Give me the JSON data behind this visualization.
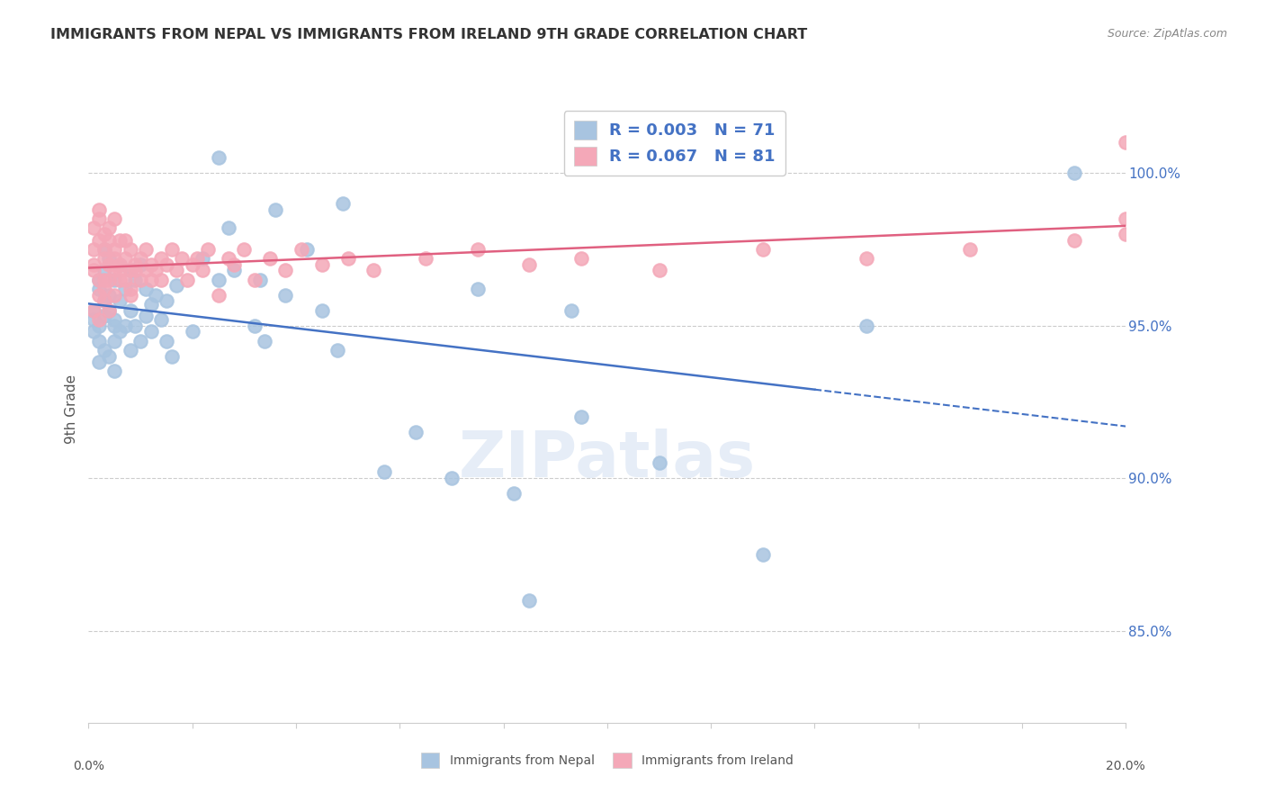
{
  "title": "IMMIGRANTS FROM NEPAL VS IMMIGRANTS FROM IRELAND 9TH GRADE CORRELATION CHART",
  "source": "Source: ZipAtlas.com",
  "ylabel": "9th Grade",
  "yticks": [
    85.0,
    90.0,
    95.0,
    100.0
  ],
  "ytick_labels": [
    "85.0%",
    "90.0%",
    "95.0%",
    "100.0%"
  ],
  "xlim": [
    0.0,
    0.2
  ],
  "ylim": [
    82.0,
    102.5
  ],
  "nepal_R": 0.003,
  "nepal_N": 71,
  "ireland_R": 0.067,
  "ireland_N": 81,
  "nepal_color": "#a8c4e0",
  "ireland_color": "#f4a8b8",
  "nepal_line_color": "#4472c4",
  "ireland_line_color": "#e06080",
  "legend_text_color": "#4472c4",
  "title_color": "#333333",
  "watermark": "ZIPatlas",
  "nepal_x": [
    0.001,
    0.001,
    0.001,
    0.002,
    0.002,
    0.002,
    0.002,
    0.002,
    0.003,
    0.003,
    0.003,
    0.003,
    0.003,
    0.004,
    0.004,
    0.004,
    0.004,
    0.005,
    0.005,
    0.005,
    0.005,
    0.005,
    0.006,
    0.006,
    0.006,
    0.007,
    0.007,
    0.008,
    0.008,
    0.008,
    0.009,
    0.009,
    0.01,
    0.01,
    0.011,
    0.011,
    0.012,
    0.012,
    0.013,
    0.014,
    0.015,
    0.015,
    0.016,
    0.017,
    0.02,
    0.022,
    0.025,
    0.025,
    0.027,
    0.028,
    0.032,
    0.033,
    0.034,
    0.036,
    0.038,
    0.042,
    0.045,
    0.048,
    0.049,
    0.057,
    0.063,
    0.07,
    0.075,
    0.082,
    0.085,
    0.093,
    0.095,
    0.11,
    0.13,
    0.15,
    0.19
  ],
  "nepal_y": [
    95.2,
    94.8,
    95.5,
    95.0,
    96.2,
    94.5,
    96.5,
    93.8,
    95.3,
    96.8,
    94.2,
    97.5,
    95.8,
    94.0,
    96.0,
    95.5,
    97.2,
    95.0,
    94.5,
    96.5,
    95.2,
    93.5,
    97.0,
    95.8,
    94.8,
    96.2,
    95.0,
    95.5,
    94.2,
    96.8,
    95.0,
    96.5,
    94.5,
    97.0,
    95.3,
    96.2,
    94.8,
    95.7,
    96.0,
    95.2,
    94.5,
    95.8,
    94.0,
    96.3,
    94.8,
    97.2,
    96.5,
    100.5,
    98.2,
    96.8,
    95.0,
    96.5,
    94.5,
    98.8,
    96.0,
    97.5,
    95.5,
    94.2,
    99.0,
    90.2,
    91.5,
    90.0,
    96.2,
    89.5,
    86.0,
    95.5,
    92.0,
    90.5,
    87.5,
    95.0,
    100.0
  ],
  "ireland_x": [
    0.001,
    0.001,
    0.001,
    0.001,
    0.001,
    0.002,
    0.002,
    0.002,
    0.002,
    0.002,
    0.002,
    0.003,
    0.003,
    0.003,
    0.003,
    0.003,
    0.003,
    0.004,
    0.004,
    0.004,
    0.004,
    0.004,
    0.005,
    0.005,
    0.005,
    0.005,
    0.005,
    0.006,
    0.006,
    0.006,
    0.006,
    0.007,
    0.007,
    0.007,
    0.008,
    0.008,
    0.008,
    0.008,
    0.009,
    0.009,
    0.01,
    0.01,
    0.011,
    0.011,
    0.012,
    0.012,
    0.013,
    0.014,
    0.014,
    0.015,
    0.016,
    0.017,
    0.018,
    0.019,
    0.02,
    0.021,
    0.022,
    0.023,
    0.025,
    0.027,
    0.028,
    0.03,
    0.032,
    0.035,
    0.038,
    0.041,
    0.045,
    0.05,
    0.055,
    0.065,
    0.075,
    0.085,
    0.095,
    0.11,
    0.13,
    0.15,
    0.17,
    0.19,
    0.2,
    0.2,
    0.2
  ],
  "ireland_y": [
    97.5,
    96.8,
    98.2,
    95.5,
    97.0,
    96.5,
    98.5,
    95.2,
    97.8,
    96.0,
    98.8,
    97.2,
    96.5,
    98.0,
    95.8,
    97.5,
    96.2,
    97.0,
    96.5,
    98.2,
    95.5,
    97.8,
    96.8,
    97.5,
    96.0,
    98.5,
    97.2,
    96.8,
    97.0,
    96.5,
    97.8,
    97.2,
    96.5,
    97.8,
    96.8,
    96.0,
    97.5,
    96.2,
    97.0,
    96.8,
    96.5,
    97.2,
    96.8,
    97.5,
    96.5,
    97.0,
    96.8,
    97.2,
    96.5,
    97.0,
    97.5,
    96.8,
    97.2,
    96.5,
    97.0,
    97.2,
    96.8,
    97.5,
    96.0,
    97.2,
    97.0,
    97.5,
    96.5,
    97.2,
    96.8,
    97.5,
    97.0,
    97.2,
    96.8,
    97.2,
    97.5,
    97.0,
    97.2,
    96.8,
    97.5,
    97.2,
    97.5,
    97.8,
    98.0,
    98.5,
    101.0
  ]
}
